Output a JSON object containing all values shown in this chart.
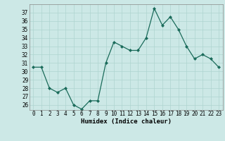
{
  "x": [
    0,
    1,
    2,
    3,
    4,
    5,
    6,
    7,
    8,
    9,
    10,
    11,
    12,
    13,
    14,
    15,
    16,
    17,
    18,
    19,
    20,
    21,
    22,
    23
  ],
  "y": [
    30.5,
    30.5,
    28.0,
    27.5,
    28.0,
    26.0,
    25.5,
    26.5,
    26.5,
    31.0,
    33.5,
    33.0,
    32.5,
    32.5,
    34.0,
    37.5,
    35.5,
    36.5,
    35.0,
    33.0,
    31.5,
    32.0,
    31.5,
    30.5
  ],
  "line_color": "#1a6b5a",
  "marker": "D",
  "marker_size": 2.0,
  "bg_color": "#cce8e6",
  "grid_color": "#aed4d0",
  "xlabel": "Humidex (Indice chaleur)",
  "ylim": [
    25.4,
    38.0
  ],
  "xlim": [
    -0.5,
    23.5
  ],
  "yticks": [
    26,
    27,
    28,
    29,
    30,
    31,
    32,
    33,
    34,
    35,
    36,
    37
  ],
  "xticks": [
    0,
    1,
    2,
    3,
    4,
    5,
    6,
    7,
    8,
    9,
    10,
    11,
    12,
    13,
    14,
    15,
    16,
    17,
    18,
    19,
    20,
    21,
    22,
    23
  ],
  "tick_fontsize": 5.5,
  "xlabel_fontsize": 6.5
}
